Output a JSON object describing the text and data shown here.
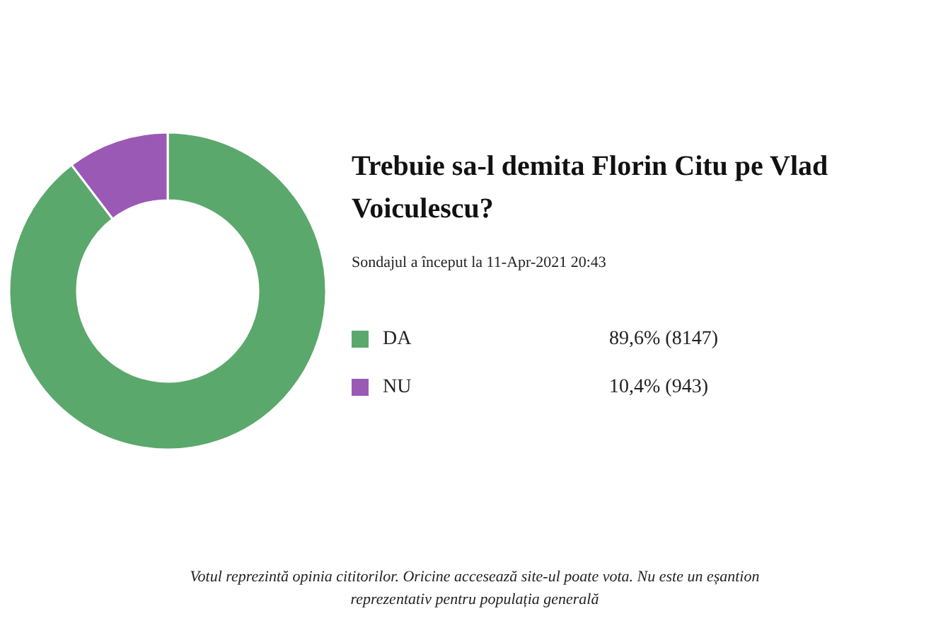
{
  "chart_data": {
    "type": "donut",
    "title": "Trebuie sa-l demita Florin Citu pe Vlad Voiculescu?",
    "subtitle": "Sondajul a început la 11-Apr-2021 20:43",
    "categories": [
      "DA",
      "NU"
    ],
    "values": [
      8147,
      943
    ],
    "colors": [
      "#5ba86c",
      "#9b59b6"
    ],
    "value_labels": [
      "89,6% (8147)",
      "10,4% (943)"
    ],
    "legend": "right",
    "annotations": [
      "Votul reprezintă opinia cititorilor. Oricine accesează site-ul poate vota. Nu este un eșantion reprezentativ pentru populația generală"
    ]
  }
}
